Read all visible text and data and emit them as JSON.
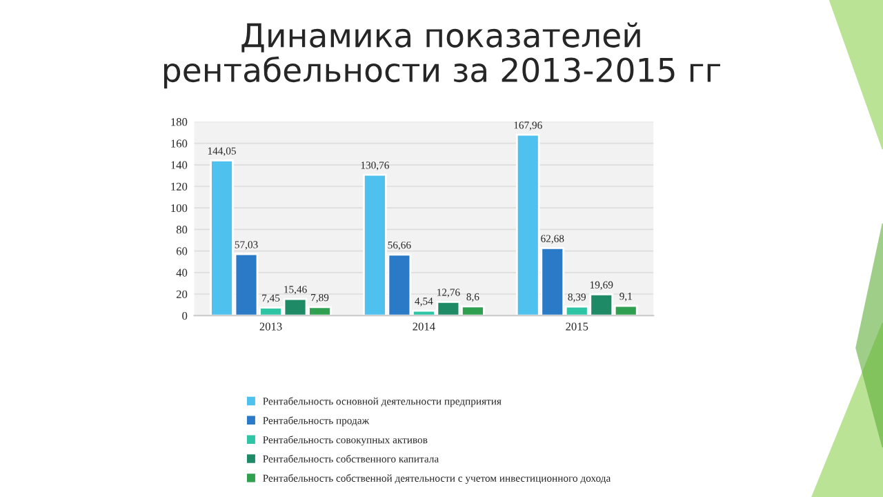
{
  "chart_data": {
    "type": "bar",
    "title": "Динамика показателей\nрентабельности за 2013-2015 гг",
    "categories": [
      "2013",
      "2014",
      "2015"
    ],
    "series": [
      {
        "name": "Рентабельность основной деятельности предприятия",
        "color": "#4fc1ef",
        "values": [
          144.05,
          130.76,
          167.96
        ],
        "value_labels": [
          "144,05",
          "130,76",
          "167,96"
        ]
      },
      {
        "name": "Рентабельность продаж",
        "color": "#2a7ac8",
        "values": [
          57.03,
          56.66,
          62.68
        ],
        "value_labels": [
          "57,03",
          "56,66",
          "62,68"
        ]
      },
      {
        "name": "Рентабельность совокупных активов",
        "color": "#2ec5a5",
        "values": [
          7.45,
          4.54,
          8.39
        ],
        "value_labels": [
          "7,45",
          "4,54",
          "8,39"
        ]
      },
      {
        "name": "Рентабельность собственного капитала",
        "color": "#1e8a66",
        "values": [
          15.46,
          12.76,
          19.69
        ],
        "value_labels": [
          "15,46",
          "12,76",
          "19,69"
        ]
      },
      {
        "name": "Рентабельность собственной деятельности с учетом инвестиционного дохода",
        "color": "#2fa050",
        "values": [
          7.89,
          8.6,
          9.1
        ],
        "value_labels": [
          "7,89",
          "8,6",
          "9,1"
        ]
      }
    ],
    "ylim": [
      0,
      180
    ],
    "yticks": [
      0,
      20,
      40,
      60,
      80,
      100,
      120,
      140,
      160,
      180
    ],
    "grid": "y",
    "legend": "bottom"
  }
}
